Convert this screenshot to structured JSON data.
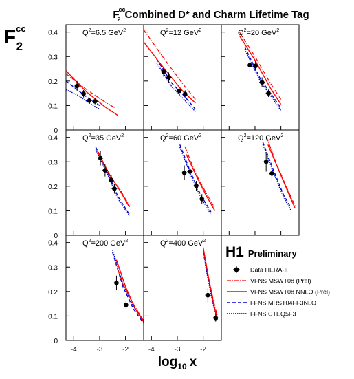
{
  "header": {
    "title_sym": "F",
    "title_sub": "2",
    "title_sup": "cc",
    "title_text": "Combined D* and Charm Lifetime Tag"
  },
  "ylabel": {
    "sym": "F",
    "sub": "2",
    "sup": "cc"
  },
  "xlabel": {
    "main": "log",
    "sub": "10",
    "var": "x"
  },
  "experiment": {
    "name": "H1",
    "status": "Preliminary"
  },
  "legend": [
    {
      "label": "Data HERA-II",
      "key": "data"
    },
    {
      "label": "VFNS MSWT08 (Prel)",
      "key": "vfns_lo"
    },
    {
      "label": "VFNS MSWT08 NNLO (Prel)",
      "key": "vfns_nnlo"
    },
    {
      "label": "FFNS MRST04FF3NLO",
      "key": "ffns_mrst"
    },
    {
      "label": "FFNS CTEQ5F3",
      "key": "ffns_cteq"
    }
  ],
  "styles": {
    "data": {
      "color": "#000000"
    },
    "vfns_lo": {
      "color": "#ff0000",
      "dash": "6,2,1,2",
      "width": 1.2
    },
    "vfns_nnlo": {
      "color": "#ff0000",
      "dash": "",
      "width": 1.4
    },
    "ffns_mrst": {
      "color": "#0000cc",
      "dash": "5,3",
      "width": 1.4
    },
    "ffns_cteq": {
      "color": "#0000cc",
      "dash": "1.5,1.5",
      "width": 1.4
    }
  },
  "chart_data": {
    "type": "scatter",
    "xlim": [
      -4.3,
      -1.3
    ],
    "ylim": [
      0,
      0.43
    ],
    "xticks": [
      -4,
      -3,
      -2
    ],
    "yticks": [
      0,
      0.1,
      0.2,
      0.3,
      0.4
    ],
    "panels": [
      {
        "q2": "6.5",
        "unit": "GeV",
        "power": "2",
        "data": [
          [
            -3.87,
            0.18,
            0.02
          ],
          [
            -3.62,
            0.148,
            0.015
          ],
          [
            -3.4,
            0.12,
            0.012
          ],
          [
            -3.18,
            0.117,
            0.012
          ]
        ],
        "vfns_lo": [
          [
            -4.3,
            0.23
          ],
          [
            -3.5,
            0.165
          ],
          [
            -2.8,
            0.115
          ],
          [
            -2.4,
            0.09
          ]
        ],
        "vfns_nnlo": [
          [
            -4.3,
            0.242
          ],
          [
            -3.5,
            0.155
          ],
          [
            -2.8,
            0.095
          ],
          [
            -2.3,
            0.06
          ]
        ],
        "ffns_mrst": [
          [
            -4.3,
            0.2
          ],
          [
            -3.5,
            0.135
          ],
          [
            -3.0,
            0.1
          ]
        ],
        "ffns_cteq": [
          [
            -4.3,
            0.165
          ],
          [
            -3.8,
            0.14
          ],
          [
            -3.4,
            0.11
          ],
          [
            -3.0,
            0.085
          ]
        ]
      },
      {
        "q2": "12",
        "unit": "GeV",
        "power": "2",
        "data": [
          [
            -3.53,
            0.238,
            0.02
          ],
          [
            -3.33,
            0.215,
            0.02
          ],
          [
            -2.93,
            0.16,
            0.015
          ],
          [
            -2.7,
            0.147,
            0.015
          ]
        ],
        "vfns_lo": [
          [
            -4.3,
            0.41
          ],
          [
            -3.5,
            0.29
          ],
          [
            -2.8,
            0.19
          ],
          [
            -2.3,
            0.125
          ]
        ],
        "vfns_nnlo": [
          [
            -4.3,
            0.36
          ],
          [
            -3.5,
            0.25
          ],
          [
            -2.8,
            0.16
          ],
          [
            -2.3,
            0.11
          ]
        ],
        "ffns_mrst": [
          [
            -3.8,
            0.29
          ],
          [
            -3.2,
            0.19
          ],
          [
            -2.7,
            0.135
          ],
          [
            -2.3,
            0.085
          ]
        ],
        "ffns_cteq": [
          [
            -3.8,
            0.275
          ],
          [
            -3.2,
            0.175
          ],
          [
            -2.7,
            0.12
          ],
          [
            -2.3,
            0.075
          ]
        ]
      },
      {
        "q2": "20",
        "unit": "GeV",
        "power": "2",
        "data": [
          [
            -3.2,
            0.265,
            0.025
          ],
          [
            -2.98,
            0.262,
            0.02
          ],
          [
            -2.73,
            0.195,
            0.02
          ],
          [
            -2.48,
            0.15,
            0.015
          ]
        ],
        "vfns_lo": [
          [
            -3.6,
            0.4
          ],
          [
            -3.0,
            0.3
          ],
          [
            -2.4,
            0.19
          ],
          [
            -2.0,
            0.125
          ]
        ],
        "vfns_nnlo": [
          [
            -3.6,
            0.385
          ],
          [
            -3.0,
            0.285
          ],
          [
            -2.4,
            0.17
          ],
          [
            -2.0,
            0.105
          ]
        ],
        "ffns_mrst": [
          [
            -3.4,
            0.34
          ],
          [
            -2.8,
            0.21
          ],
          [
            -2.2,
            0.12
          ],
          [
            -2.0,
            0.09
          ]
        ],
        "ffns_cteq": [
          [
            -3.4,
            0.33
          ],
          [
            -2.8,
            0.2
          ],
          [
            -2.2,
            0.11
          ],
          [
            -2.0,
            0.08
          ]
        ]
      },
      {
        "q2": "35",
        "unit": "GeV",
        "power": "2",
        "data": [
          [
            -2.97,
            0.315,
            0.03
          ],
          [
            -2.79,
            0.265,
            0.025
          ],
          [
            -2.55,
            0.225,
            0.02
          ],
          [
            -2.43,
            0.19,
            0.02
          ]
        ],
        "vfns_lo": [
          [
            -3.05,
            0.34
          ],
          [
            -2.6,
            0.24
          ],
          [
            -2.2,
            0.185
          ],
          [
            -1.85,
            0.12
          ]
        ],
        "vfns_nnlo": [
          [
            -3.05,
            0.335
          ],
          [
            -2.6,
            0.245
          ],
          [
            -2.2,
            0.18
          ],
          [
            -1.85,
            0.115
          ]
        ],
        "ffns_mrst": [
          [
            -3.15,
            0.36
          ],
          [
            -2.7,
            0.26
          ],
          [
            -2.3,
            0.16
          ],
          [
            -1.85,
            0.085
          ]
        ],
        "ffns_cteq": [
          [
            -3.15,
            0.35
          ],
          [
            -2.7,
            0.25
          ],
          [
            -2.3,
            0.15
          ],
          [
            -1.85,
            0.08
          ]
        ]
      },
      {
        "q2": "60",
        "unit": "GeV",
        "power": "2",
        "data": [
          [
            -2.73,
            0.255,
            0.03
          ],
          [
            -2.51,
            0.26,
            0.025
          ],
          [
            -2.27,
            0.202,
            0.02
          ],
          [
            -2.05,
            0.148,
            0.02
          ]
        ],
        "vfns_lo": [
          [
            -2.7,
            0.36
          ],
          [
            -2.3,
            0.255
          ],
          [
            -1.9,
            0.175
          ],
          [
            -1.55,
            0.11
          ]
        ],
        "vfns_nnlo": [
          [
            -2.65,
            0.33
          ],
          [
            -2.3,
            0.25
          ],
          [
            -1.9,
            0.165
          ],
          [
            -1.55,
            0.1
          ]
        ],
        "ffns_mrst": [
          [
            -2.9,
            0.37
          ],
          [
            -2.5,
            0.26
          ],
          [
            -2.1,
            0.165
          ],
          [
            -1.7,
            0.095
          ]
        ],
        "ffns_cteq": [
          [
            -2.9,
            0.36
          ],
          [
            -2.5,
            0.25
          ],
          [
            -2.1,
            0.155
          ],
          [
            -1.7,
            0.085
          ]
        ]
      },
      {
        "q2": "120",
        "unit": "GeV",
        "power": "2",
        "data": [
          [
            -2.57,
            0.3,
            0.04
          ],
          [
            -2.35,
            0.252,
            0.03
          ]
        ],
        "vfns_lo": [
          [
            -2.55,
            0.4
          ],
          [
            -2.2,
            0.3
          ],
          [
            -1.8,
            0.2
          ],
          [
            -1.45,
            0.12
          ]
        ],
        "vfns_nnlo": [
          [
            -2.5,
            0.37
          ],
          [
            -2.1,
            0.27
          ],
          [
            -1.7,
            0.17
          ],
          [
            -1.45,
            0.11
          ]
        ],
        "ffns_mrst": [
          [
            -2.7,
            0.38
          ],
          [
            -2.3,
            0.27
          ],
          [
            -1.9,
            0.165
          ],
          [
            -1.6,
            0.11
          ]
        ],
        "ffns_cteq": [
          [
            -2.7,
            0.37
          ],
          [
            -2.3,
            0.26
          ],
          [
            -1.9,
            0.155
          ],
          [
            -1.6,
            0.1
          ]
        ]
      },
      {
        "q2": "200",
        "unit": "GeV",
        "power": "2",
        "data": [
          [
            -2.35,
            0.235,
            0.03
          ],
          [
            -1.98,
            0.145,
            0.015
          ]
        ],
        "vfns_lo": [
          [
            -2.4,
            0.32
          ],
          [
            -2.1,
            0.23
          ],
          [
            -1.7,
            0.15
          ],
          [
            -1.3,
            0.08
          ]
        ],
        "vfns_nnlo": [
          [
            -2.35,
            0.33
          ],
          [
            -2.0,
            0.22
          ],
          [
            -1.65,
            0.135
          ],
          [
            -1.3,
            0.075
          ]
        ],
        "ffns_mrst": [
          [
            -2.5,
            0.36
          ],
          [
            -2.1,
            0.22
          ],
          [
            -1.7,
            0.13
          ],
          [
            -1.3,
            0.07
          ]
        ],
        "ffns_cteq": [
          [
            -2.5,
            0.37
          ],
          [
            -2.1,
            0.23
          ],
          [
            -1.7,
            0.14
          ],
          [
            -1.3,
            0.08
          ]
        ]
      },
      {
        "q2": "400",
        "unit": "GeV",
        "power": "2",
        "data": [
          [
            -1.82,
            0.185,
            0.03
          ],
          [
            -1.52,
            0.092,
            0.015
          ]
        ],
        "vfns_lo": [
          [
            -2.0,
            0.37
          ],
          [
            -1.8,
            0.26
          ],
          [
            -1.6,
            0.16
          ],
          [
            -1.45,
            0.1
          ]
        ],
        "vfns_nnlo": [
          [
            -2.0,
            0.38
          ],
          [
            -1.8,
            0.26
          ],
          [
            -1.6,
            0.15
          ],
          [
            -1.45,
            0.085
          ]
        ],
        "ffns_mrst": [
          [
            -2.0,
            0.365
          ],
          [
            -1.8,
            0.25
          ],
          [
            -1.6,
            0.145
          ],
          [
            -1.45,
            0.09
          ]
        ],
        "ffns_cteq": [
          [
            -2.0,
            0.36
          ],
          [
            -1.8,
            0.24
          ],
          [
            -1.6,
            0.14
          ],
          [
            -1.45,
            0.085
          ]
        ]
      }
    ]
  }
}
